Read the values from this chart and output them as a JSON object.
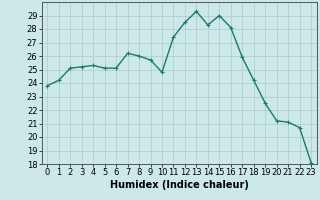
{
  "x": [
    0,
    1,
    2,
    3,
    4,
    5,
    6,
    7,
    8,
    9,
    10,
    11,
    12,
    13,
    14,
    15,
    16,
    17,
    18,
    19,
    20,
    21,
    22,
    23
  ],
  "y": [
    23.8,
    24.2,
    25.1,
    25.2,
    25.3,
    25.1,
    25.1,
    26.2,
    26.0,
    25.7,
    24.8,
    27.4,
    28.5,
    29.3,
    28.3,
    29.0,
    28.1,
    25.9,
    24.2,
    22.5,
    21.2,
    21.1,
    20.7,
    18.1
  ],
  "line_color": "#1a7a6e",
  "marker": "+",
  "markersize": 3,
  "linewidth": 1.0,
  "bg_color": "#cce8e8",
  "grid_color": "#aacccc",
  "xlabel": "Humidex (Indice chaleur)",
  "xlabel_fontsize": 7,
  "tick_fontsize": 6,
  "ylim": [
    18,
    30
  ],
  "xlim": [
    -0.5,
    23.5
  ],
  "yticks": [
    18,
    19,
    20,
    21,
    22,
    23,
    24,
    25,
    26,
    27,
    28,
    29
  ],
  "xticks": [
    0,
    1,
    2,
    3,
    4,
    5,
    6,
    7,
    8,
    9,
    10,
    11,
    12,
    13,
    14,
    15,
    16,
    17,
    18,
    19,
    20,
    21,
    22,
    23
  ]
}
